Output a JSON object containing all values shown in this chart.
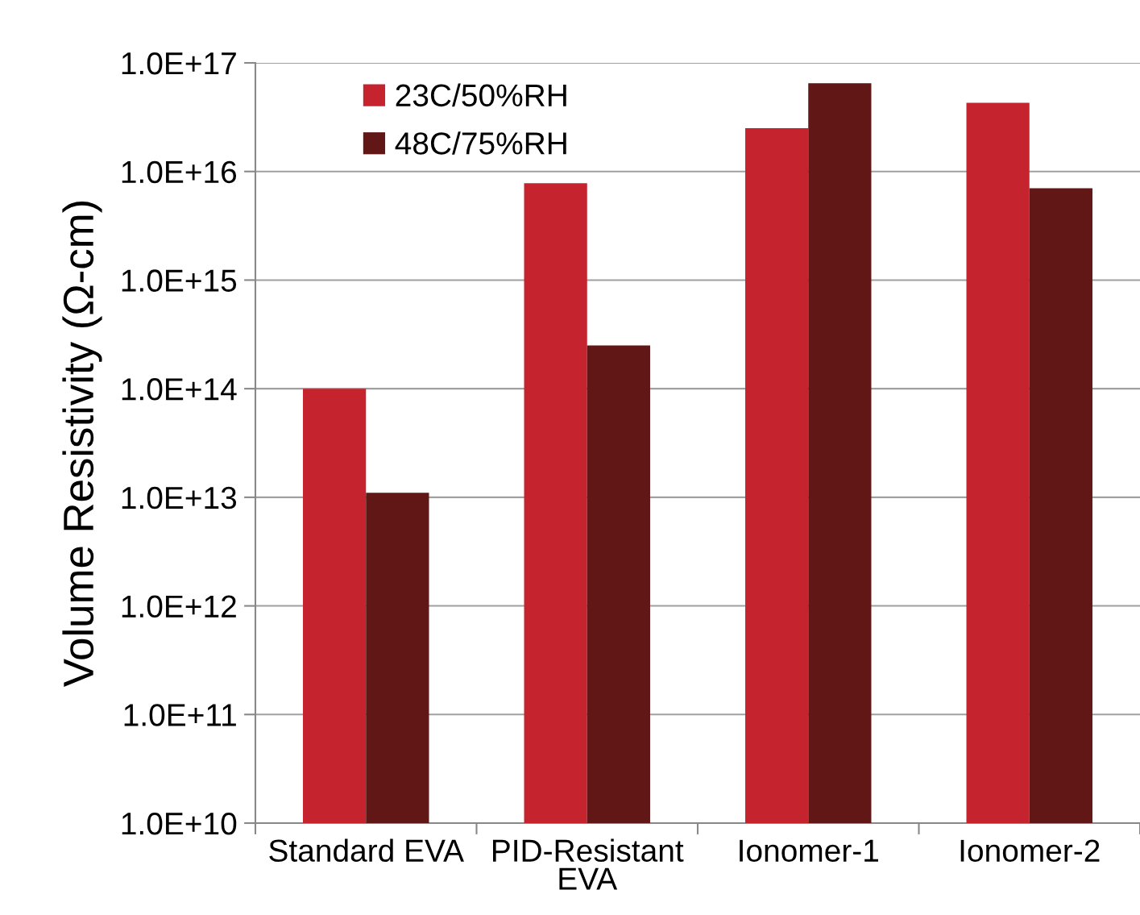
{
  "chart_data": {
    "type": "bar",
    "ylabel": "Volume Resistivity (Ω-cm)",
    "categories": [
      "Standard EVA",
      "PID-Resistant\nEVA",
      "Ionomer-1",
      "Ionomer-2"
    ],
    "series": [
      {
        "name": "23C/50%RH",
        "color": "#c5242f",
        "values": [
          100000000000000.0,
          7800000000000000.0,
          2.5e+16,
          4.3e+16
        ]
      },
      {
        "name": "48C/75%RH",
        "color": "#601716",
        "values": [
          11000000000000.0,
          250000000000000.0,
          6.5e+16,
          7000000000000000.0
        ]
      }
    ],
    "log": "y",
    "ylim": [
      10000000000.0,
      1e+17
    ],
    "yticks": [
      {
        "value": 10000000000.0,
        "label": "1.0E+10"
      },
      {
        "value": 100000000000.0,
        "label": "1.0E+11"
      },
      {
        "value": 1000000000000.0,
        "label": "1.0E+12"
      },
      {
        "value": 10000000000000.0,
        "label": "1.0E+13"
      },
      {
        "value": 100000000000000.0,
        "label": "1.0E+14"
      },
      {
        "value": 1000000000000000.0,
        "label": "1.0E+15"
      },
      {
        "value": 1e+16,
        "label": "1.0E+16"
      },
      {
        "value": 1e+17,
        "label": "1.0E+17"
      }
    ],
    "grid": "y",
    "legend": "top left"
  }
}
